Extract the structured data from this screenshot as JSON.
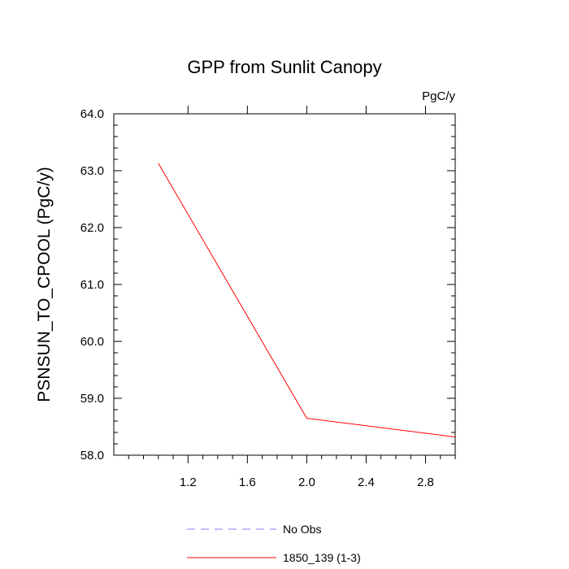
{
  "chart_data": {
    "type": "line",
    "title": "GPP from Sunlit Canopy",
    "units_label": "PgC/y",
    "ylabel": "PSNSUN_TO_CPOOL  (PgC/y)",
    "xlabel": "",
    "xlim": [
      0.7,
      3.0
    ],
    "ylim": [
      58.0,
      64.0
    ],
    "x_ticks": [
      1.2,
      1.6,
      2.0,
      2.4,
      2.8
    ],
    "x_tick_labels": [
      "1.2",
      "1.6",
      "2.0",
      "2.4",
      "2.8"
    ],
    "y_ticks": [
      58.0,
      59.0,
      60.0,
      61.0,
      62.0,
      63.0,
      64.0
    ],
    "y_tick_labels": [
      "58.0",
      "59.0",
      "60.0",
      "61.0",
      "62.0",
      "63.0",
      "64.0"
    ],
    "grid": false,
    "legend_position": "bottom-center",
    "series": [
      {
        "name": "1850_139 (1-3)",
        "color": "#ff0000",
        "style": "solid",
        "x": [
          1.0,
          2.0,
          3.0
        ],
        "values": [
          63.13,
          58.65,
          58.32
        ]
      }
    ],
    "legend": [
      {
        "label": "No Obs",
        "color": "#8080ff",
        "style": "dashed"
      },
      {
        "label": "1850_139 (1-3)",
        "color": "#ff0000",
        "style": "solid"
      }
    ]
  }
}
